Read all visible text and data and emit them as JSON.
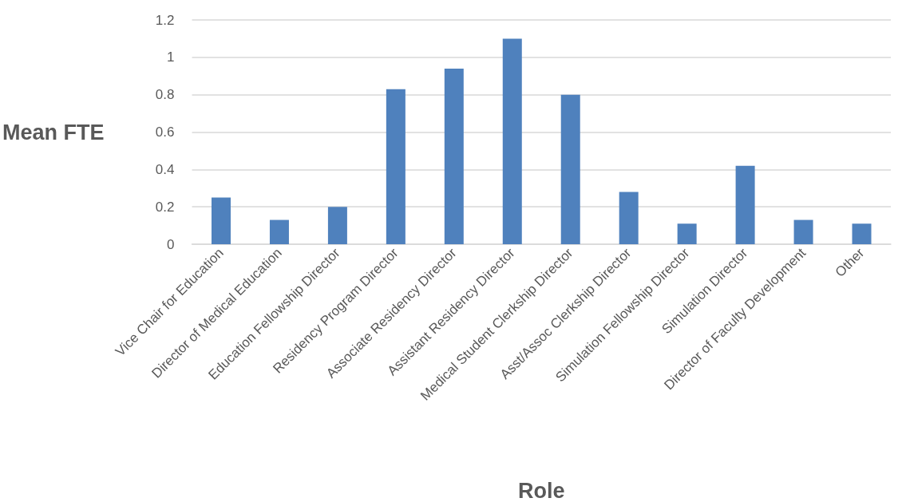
{
  "chart_data": {
    "type": "bar",
    "xlabel": "Role",
    "ylabel": "Mean FTE",
    "categories": [
      "Vice Chair for Education",
      "Director of Medical Education",
      "Education Fellowship Director",
      "Residency Program Director",
      "Associate Residency Director",
      "Assistant Residency Director",
      "Medical Student Clerkship Director",
      "Asst/Assoc Clerkship Director",
      "Simulation Fellowship Director",
      "Simulation Director",
      "Director of Faculty Development",
      "Other"
    ],
    "values": [
      0.25,
      0.13,
      0.2,
      0.83,
      0.94,
      1.1,
      0.8,
      0.28,
      0.11,
      0.42,
      0.13,
      0.11
    ],
    "color": "#4f81bd",
    "ylim": [
      0,
      1.2
    ],
    "yticks": [
      0,
      0.2,
      0.4,
      0.6,
      0.8,
      1,
      1.2
    ],
    "grid": "y"
  }
}
